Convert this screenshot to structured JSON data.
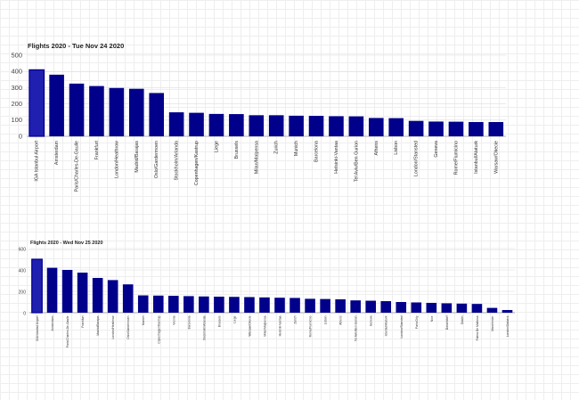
{
  "chart_data": [
    {
      "type": "bar",
      "title": "Flights 2020 - Tue Nov 24 2020",
      "xlabel": "",
      "ylabel": "",
      "ylim": [
        0,
        500
      ],
      "yticks": [
        0,
        100,
        200,
        300,
        400,
        500
      ],
      "grid": true,
      "legend": "none",
      "bar_color": "#00008b",
      "highlight_color": "#1f1fb0",
      "categories": [
        "IGA Istanbul Airport",
        "Amsterdam",
        "Paris/Charles-De-Gaulle",
        "Frankfurt",
        "London/Heathrow",
        "Madrid/Barajas",
        "Oslo/Gardermoen",
        "Stockholm/Arlanda",
        "Copenhagen/Kastrup",
        "Liege",
        "Brussels",
        "Milan/Malpensa",
        "Zurich",
        "Munich",
        "Barcelona",
        "Helsinki-Vantaa",
        "Tel Aviv/Ben Gurion",
        "Athens",
        "Lisbon",
        "London/Stansted",
        "Geneva",
        "Rome/Fiumicino",
        "Istanbul/Ataturk",
        "Warsaw/Okecie"
      ],
      "values": [
        410,
        380,
        325,
        310,
        298,
        293,
        267,
        148,
        145,
        138,
        137,
        130,
        130,
        127,
        126,
        124,
        123,
        113,
        112,
        95,
        91,
        90,
        88,
        88
      ]
    },
    {
      "type": "bar",
      "title": "Flights 2020 - Wed Nov 25 2020",
      "xlabel": "",
      "ylabel": "",
      "ylim": [
        0,
        600
      ],
      "yticks": [
        0,
        200,
        400,
        600
      ],
      "grid": true,
      "legend": "none",
      "bar_color": "#00008b",
      "highlight_color": "#1f1fb0",
      "categories": [
        "IGA Istanbul Airport",
        "Amsterdam",
        "Paris/Charles-De-Gaulle",
        "Frankfurt",
        "Madrid/Barajas",
        "London/Heathrow",
        "Oslo/Gardermoen",
        "Munich",
        "Copenhagen/Kastrup",
        "Vienna",
        "Barcelona",
        "Stockholm/Arlanda",
        "Brussels",
        "Liege",
        "Warsaw/Okecie",
        "Milan/Malpensa",
        "Helsinki-Vantaa",
        "Zurich",
        "Rome/Fiumicino",
        "Lisbon",
        "Athens",
        "Tel Aviv/Ben Gurion",
        "Geneva",
        "Istanbul/Ataturk",
        "London/Stansted",
        "Paris/Orly",
        "Nice",
        "Dusseldorf",
        "Dublin",
        "Palma De Mallorca",
        "Manchester",
        "London/Gatwick"
      ],
      "values": [
        500,
        420,
        400,
        375,
        325,
        305,
        265,
        162,
        160,
        158,
        155,
        152,
        150,
        148,
        146,
        143,
        140,
        138,
        130,
        128,
        125,
        115,
        112,
        108,
        100,
        96,
        92,
        88,
        85,
        82,
        45,
        25
      ]
    }
  ]
}
